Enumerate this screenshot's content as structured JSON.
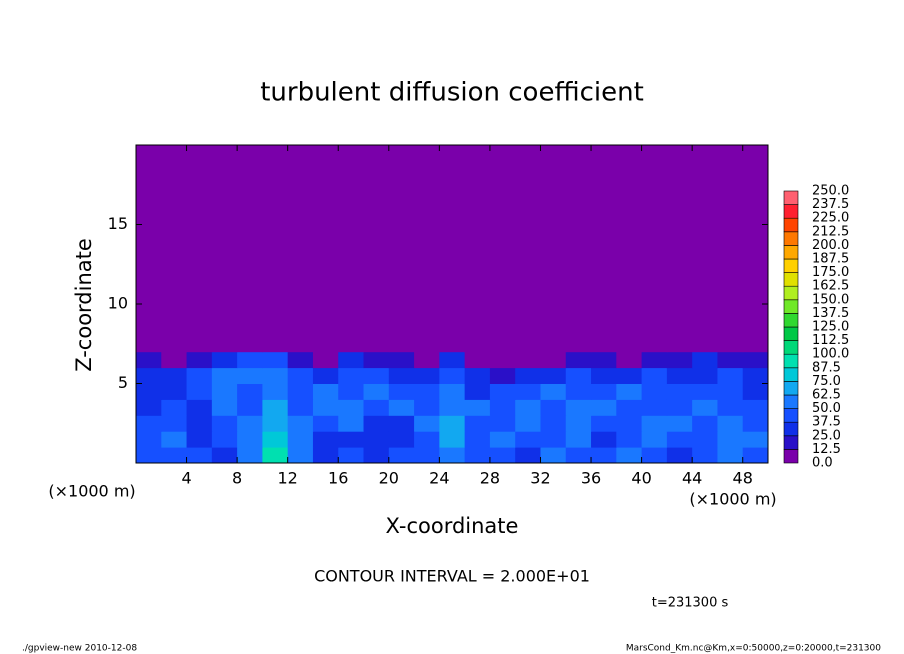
{
  "chart_data": {
    "type": "contour",
    "title": "turbulent diffusion coefficient",
    "x_label": "X-coordinate",
    "y_label": "Z-coordinate",
    "x_unit": "(×1000 m)",
    "y_unit": "(×1000 m)",
    "xlim": [
      0,
      50
    ],
    "xticks": [
      4,
      8,
      12,
      16,
      20,
      24,
      28,
      32,
      36,
      40,
      44,
      48
    ],
    "ylim": [
      0,
      20
    ],
    "yticks": [
      5,
      10,
      15
    ],
    "annotation": "CONTOUR INTERVAL = 2.000E+01",
    "time_label": "t=231300 s",
    "footer_left": "./gpview-new  2010-12-08",
    "footer_right": "MarsCond_Km.nc@Km,x=0:50000,z=0:20000,t=231300",
    "levels": [
      {
        "value": 0,
        "label": "0.0"
      },
      12.5,
      {
        "value": 25,
        "label": "25.0"
      },
      37.5,
      {
        "value": 50,
        "label": "50.0"
      },
      62.5,
      {
        "value": 75,
        "label": "75.0"
      },
      87.5,
      {
        "value": 100,
        "label": "100.0"
      },
      112.5,
      {
        "value": 125,
        "label": "125.0"
      },
      137.5,
      {
        "value": 150,
        "label": "150.0"
      },
      162.5,
      {
        "value": 175,
        "label": "175.0"
      },
      187.5,
      {
        "value": 200,
        "label": "200.0"
      },
      212.5,
      {
        "value": 225,
        "label": "225.0"
      },
      237.5,
      {
        "value": 250,
        "label": "250.0"
      }
    ],
    "colors": [
      "#7a00aa",
      "#2a10c8",
      "#1030e8",
      "#1650ff",
      "#1a78ff",
      "#12a8f0",
      "#00c8d8",
      "#00e0b0",
      "#00d878",
      "#00c846",
      "#30d830",
      "#70e828",
      "#b0ee20",
      "#e0e000",
      "#ffd000",
      "#ffa800",
      "#ff7800",
      "#ff4400",
      "#ff2030",
      "#ff6070"
    ],
    "field": {
      "x": [
        1,
        3,
        5,
        7,
        9,
        11,
        13,
        15,
        17,
        19,
        21,
        23,
        25,
        27,
        29,
        31,
        33,
        35,
        37,
        39,
        41,
        43,
        45,
        47,
        49
      ],
      "z": [
        0.5,
        1.5,
        2.5,
        3.5,
        4.5,
        5.5,
        6.5,
        7.5
      ],
      "values": [
        [
          40,
          45,
          40,
          30,
          60,
          90,
          55,
          30,
          40,
          35,
          45,
          40,
          60,
          40,
          45,
          30,
          50,
          45,
          40,
          50,
          45,
          35,
          40,
          60,
          45
        ],
        [
          45,
          50,
          30,
          45,
          55,
          80,
          60,
          35,
          30,
          25,
          35,
          45,
          70,
          45,
          50,
          40,
          45,
          55,
          35,
          40,
          50,
          45,
          40,
          55,
          50
        ],
        [
          40,
          45,
          30,
          40,
          50,
          70,
          50,
          40,
          55,
          30,
          35,
          50,
          65,
          45,
          40,
          50,
          40,
          60,
          45,
          45,
          55,
          50,
          45,
          50,
          45
        ],
        [
          35,
          40,
          35,
          50,
          40,
          65,
          45,
          50,
          50,
          40,
          50,
          45,
          55,
          50,
          40,
          55,
          45,
          55,
          50,
          40,
          45,
          40,
          50,
          45,
          40
        ],
        [
          30,
          35,
          45,
          55,
          45,
          60,
          40,
          55,
          40,
          50,
          45,
          40,
          50,
          35,
          45,
          40,
          50,
          45,
          45,
          55,
          40,
          45,
          40,
          45,
          35
        ],
        [
          25,
          30,
          40,
          50,
          55,
          55,
          45,
          35,
          45,
          40,
          35,
          30,
          45,
          25,
          20,
          30,
          35,
          40,
          30,
          35,
          40,
          35,
          30,
          40,
          30
        ],
        [
          15,
          0,
          20,
          30,
          40,
          45,
          20,
          10,
          25,
          20,
          15,
          10,
          30,
          0,
          0,
          0,
          10,
          20,
          15,
          0,
          15,
          20,
          25,
          20,
          15
        ],
        [
          0,
          0,
          0,
          0,
          10,
          10,
          0,
          0,
          0,
          0,
          0,
          0,
          10,
          0,
          0,
          0,
          0,
          0,
          0,
          0,
          0,
          0,
          10,
          0,
          0
        ]
      ]
    }
  }
}
